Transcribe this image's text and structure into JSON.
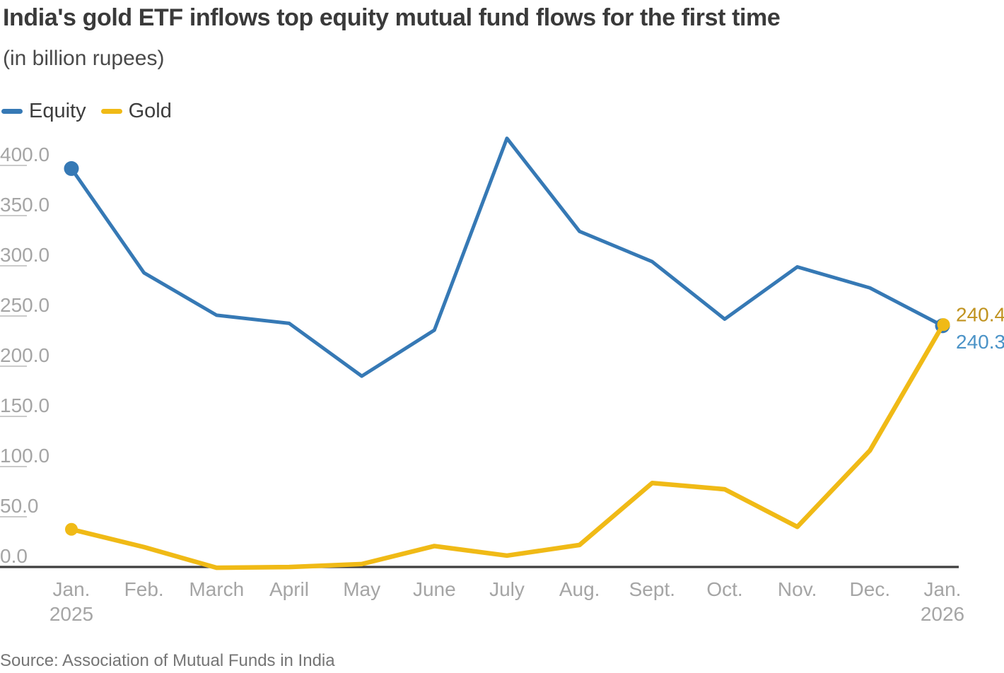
{
  "header": {
    "title": "India's gold ETF inflows top equity mutual fund flows for the first time",
    "subtitle": "(in billion rupees)"
  },
  "legend": [
    {
      "label": "Equity",
      "color": "#3679b5"
    },
    {
      "label": "Gold",
      "color": "#f0ba16"
    }
  ],
  "chart_data": {
    "type": "line",
    "title": "India's gold ETF inflows top equity mutual fund flows for the first time",
    "subtitle": "(in billion rupees)",
    "unit": "billion rupees",
    "categories": [
      "Jan.",
      "Feb.",
      "March",
      "April",
      "May",
      "June",
      "July",
      "Aug.",
      "Sept.",
      "Oct.",
      "Nov.",
      "Dec.",
      "Jan."
    ],
    "category_years": [
      {
        "index": 0,
        "label": "2025"
      },
      {
        "index": 12,
        "label": "2026"
      }
    ],
    "series": [
      {
        "name": "Equity",
        "color": "#3679b5",
        "values": [
          396.9,
          293.0,
          250.8,
          242.7,
          190.1,
          235.9,
          427.0,
          334.3,
          304.2,
          246.9,
          298.9,
          278.0,
          240.3
        ],
        "end_label": "240.3",
        "end_label_color": "#4b93c7"
      },
      {
        "name": "Gold",
        "color": "#f0ba16",
        "values": [
          37.5,
          19.8,
          -0.8,
          -0.1,
          2.9,
          20.8,
          11.3,
          21.9,
          83.6,
          77.4,
          40.0,
          116.0,
          240.4
        ],
        "end_label": "240.4",
        "end_label_color": "#c09320"
      }
    ],
    "ytick_labels": [
      "0.0",
      "50.0",
      "100.0",
      "150.0",
      "200.0",
      "250.0",
      "300.0",
      "350.0",
      "400.0"
    ],
    "ytick_values": [
      0,
      50,
      100,
      150,
      200,
      250,
      300,
      350,
      400
    ],
    "ylim": [
      0,
      400
    ],
    "xlabel": "",
    "ylabel": "",
    "grid": "off",
    "legend_position": "top-left",
    "markers": "first-and-last-point-only"
  },
  "footer": {
    "source": "Source: Association of Mutual Funds in India"
  }
}
